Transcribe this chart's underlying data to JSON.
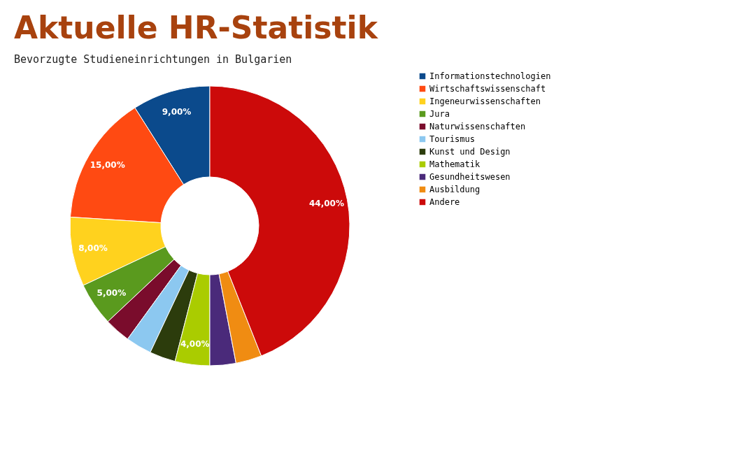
{
  "chart_data": {
    "type": "donut",
    "title": "Aktuelle HR-Statistik",
    "subtitle": "Bevorzugte Studieneinrichtungen in Bulgarien",
    "categories": [
      "Informationstechnologien",
      "Wirtschaftswissenschaft",
      "Ingeneurwissenschaften",
      "Jura",
      "Naturwissenschaften",
      "Tourismus",
      "Kunst und Design",
      "Mathematik",
      "Gesundheitswesen",
      "Ausbildung",
      "Andere"
    ],
    "values": [
      9,
      15,
      8,
      5,
      3,
      3,
      3,
      4,
      3,
      3,
      44
    ],
    "value_labels": [
      "9,00%",
      "15,00%",
      "8,00%",
      "5,00%",
      null,
      null,
      null,
      "4,00%",
      null,
      null,
      "44,00%"
    ],
    "colors": [
      "#0b4a8c",
      "#ff4a12",
      "#ffd21e",
      "#5a9a1e",
      "#7a0c2c",
      "#8cc8f0",
      "#2c3c0c",
      "#aacc00",
      "#4a2a7a",
      "#f08c12",
      "#cc0a0a"
    ],
    "legend": "right"
  }
}
